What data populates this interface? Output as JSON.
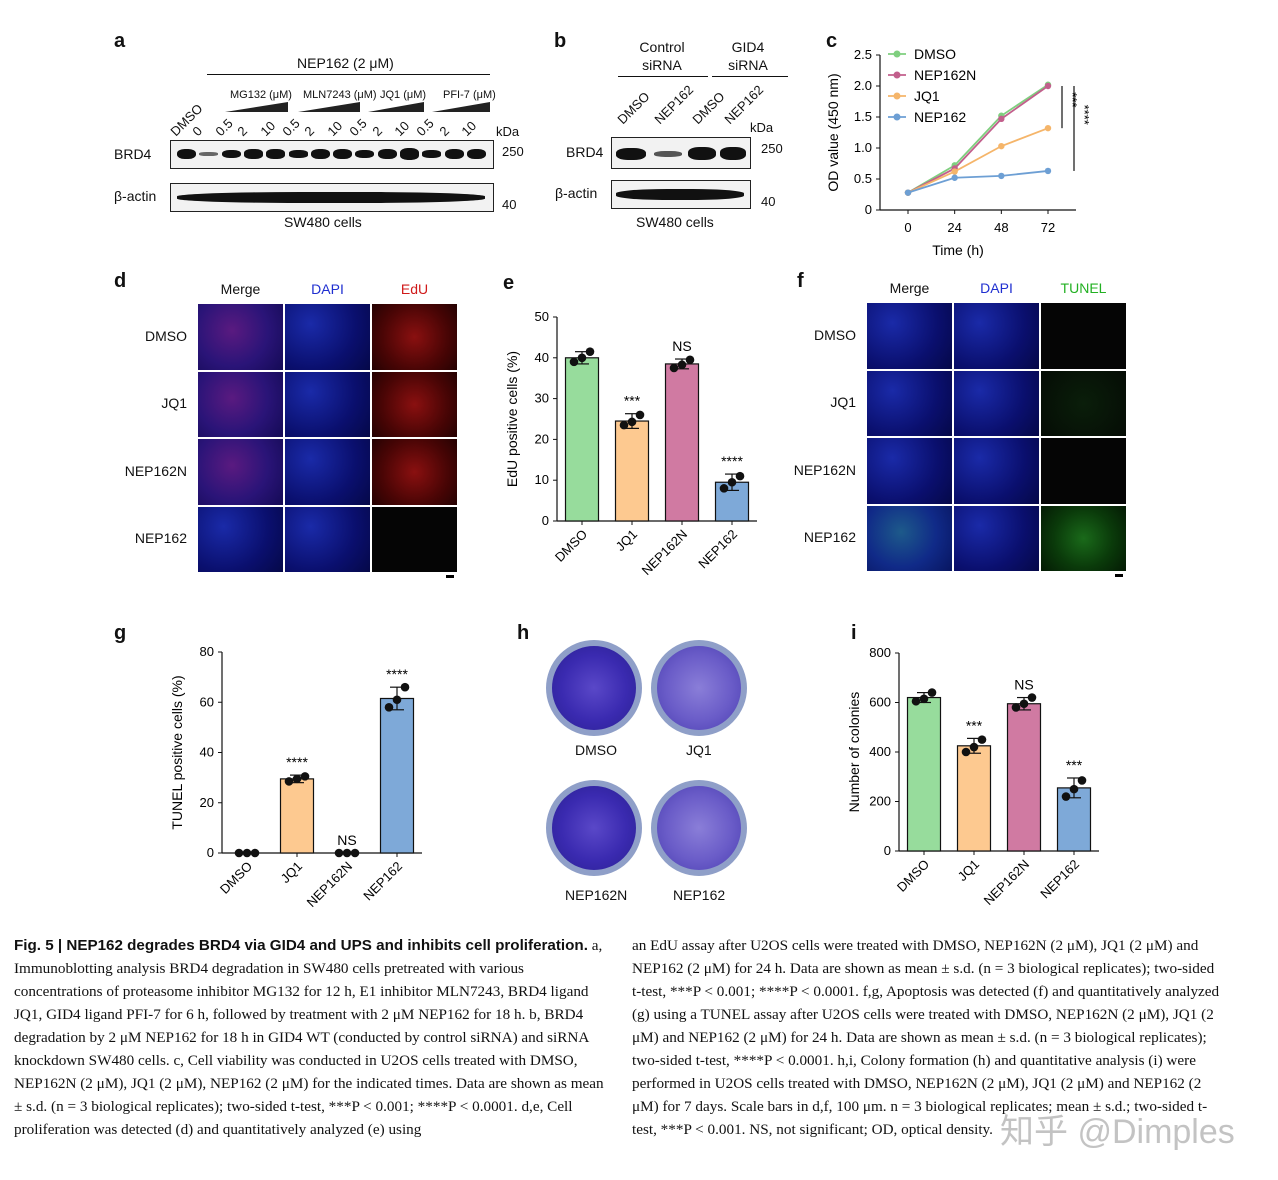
{
  "panels": {
    "a": {
      "letter": "a",
      "treatment": "NEP162 (2 μM)",
      "inhibitors": [
        "MG132 (μM)",
        "MLN7243 (μM)",
        "JQ1 (μM)",
        "PFI-7 (μM)"
      ],
      "lanes": [
        "DMSO",
        "0",
        "0.5",
        "2",
        "10",
        "0.5",
        "2",
        "10",
        "0.5",
        "2",
        "10",
        "0.5",
        "2",
        "10"
      ],
      "kda": "kDa",
      "rows": [
        "BRD4",
        "β-actin"
      ],
      "markers": [
        "250",
        "40"
      ],
      "cells": "SW480 cells"
    },
    "b": {
      "letter": "b",
      "groups": [
        "Control siRNA",
        "GID4 siRNA"
      ],
      "lanes": [
        "DMSO",
        "NEP162",
        "DMSO",
        "NEP162"
      ],
      "kda": "kDa",
      "rows": [
        "BRD4",
        "β-actin"
      ],
      "markers": [
        "250",
        "40"
      ],
      "cells": "SW480 cells"
    },
    "d": {
      "letter": "d",
      "columns": [
        "Merge",
        "DAPI",
        "EdU"
      ],
      "rows": [
        "DMSO",
        "JQ1",
        "NEP162N",
        "NEP162"
      ],
      "column_colors": [
        "#111111",
        "#1f2fd0",
        "#d01a1a"
      ]
    },
    "f": {
      "letter": "f",
      "columns": [
        "Merge",
        "DAPI",
        "TUNEL"
      ],
      "rows": [
        "DMSO",
        "JQ1",
        "NEP162N",
        "NEP162"
      ],
      "column_colors": [
        "#111111",
        "#1f2fd0",
        "#22b022"
      ]
    },
    "h": {
      "letter": "h",
      "labels": [
        "DMSO",
        "JQ1",
        "NEP162N",
        "NEP162"
      ]
    }
  },
  "chart_data": [
    {
      "panel": "c",
      "type": "line",
      "x": [
        0,
        24,
        48,
        72
      ],
      "xlabel": "Time (h)",
      "ylabel": "OD value (450 nm)",
      "ylim": [
        0,
        2.5
      ],
      "yticks": [
        "0",
        "0.5",
        "1.0",
        "1.5",
        "2.0",
        "2.5"
      ],
      "xticks": [
        "0",
        "24",
        "48",
        "72"
      ],
      "legend_position": "top-left",
      "series": [
        {
          "name": "DMSO",
          "values": [
            0.28,
            0.72,
            1.52,
            2.02
          ],
          "color": "#7fcf7f"
        },
        {
          "name": "NEP162N",
          "values": [
            0.28,
            0.67,
            1.47,
            2.0
          ],
          "color": "#c25f8c"
        },
        {
          "name": "JQ1",
          "values": [
            0.28,
            0.62,
            1.03,
            1.32
          ],
          "color": "#f5b56a"
        },
        {
          "name": "NEP162",
          "values": [
            0.28,
            0.52,
            0.55,
            0.63
          ],
          "color": "#6d9fd4"
        }
      ],
      "annotations": [
        "***",
        "****"
      ]
    },
    {
      "panel": "e",
      "type": "bar",
      "categories": [
        "DMSO",
        "JQ1",
        "NEP162N",
        "NEP162"
      ],
      "values": [
        40,
        24.5,
        38.5,
        9.5
      ],
      "errors": [
        1.5,
        1.8,
        1.2,
        2.0
      ],
      "points": [
        [
          39,
          40,
          41.5
        ],
        [
          23.5,
          24.3,
          26
        ],
        [
          37.5,
          38.3,
          39.5
        ],
        [
          8,
          9.5,
          11
        ]
      ],
      "significance": [
        "",
        "***",
        "NS",
        "****"
      ],
      "colors": [
        "#97dc9c",
        "#fdc990",
        "#d07aa2",
        "#7ea9d8"
      ],
      "ylabel": "EdU positive cells (%)",
      "ylim": [
        0,
        50
      ],
      "yticks": [
        "0",
        "10",
        "20",
        "30",
        "40",
        "50"
      ]
    },
    {
      "panel": "g",
      "type": "bar",
      "categories": [
        "DMSO",
        "JQ1",
        "NEP162N",
        "NEP162"
      ],
      "values": [
        0,
        29.5,
        0,
        61.5
      ],
      "errors": [
        0,
        1.5,
        0,
        4.5
      ],
      "points": [
        [
          0,
          0,
          0
        ],
        [
          28.5,
          29.5,
          30.5
        ],
        [
          0,
          0,
          0
        ],
        [
          58,
          61,
          66
        ]
      ],
      "significance": [
        "",
        "****",
        "NS",
        "****"
      ],
      "colors": [
        "#97dc9c",
        "#fdc990",
        "#d07aa2",
        "#7ea9d8"
      ],
      "ylabel": "TUNEL positive cells (%)",
      "ylim": [
        0,
        80
      ],
      "yticks": [
        "0",
        "20",
        "40",
        "60",
        "80"
      ]
    },
    {
      "panel": "i",
      "type": "bar",
      "categories": [
        "DMSO",
        "JQ1",
        "NEP162N",
        "NEP162"
      ],
      "values": [
        620,
        425,
        595,
        255
      ],
      "errors": [
        20,
        30,
        25,
        40
      ],
      "points": [
        [
          605,
          615,
          640
        ],
        [
          400,
          420,
          450
        ],
        [
          580,
          595,
          620
        ],
        [
          220,
          250,
          285
        ]
      ],
      "significance": [
        "",
        "***",
        "NS",
        "***"
      ],
      "colors": [
        "#97dc9c",
        "#fdc990",
        "#d07aa2",
        "#7ea9d8"
      ],
      "ylabel": "Number of colonies",
      "ylim": [
        0,
        800
      ],
      "yticks": [
        "0",
        "200",
        "400",
        "600",
        "800"
      ]
    }
  ],
  "caption": {
    "title": "Fig. 5 | NEP162 degrades BRD4 via GID4 and UPS and inhibits cell proliferation.",
    "left": "a, Immunoblotting analysis BRD4 degradation in SW480 cells pretreated with various concentrations of proteasome inhibitor MG132 for 12 h, E1 inhibitor MLN7243, BRD4 ligand JQ1, GID4 ligand PFI-7 for 6 h, followed by treatment with 2 μM NEP162 for 18 h. b, BRD4 degradation by 2 μM NEP162 for 18 h in GID4 WT (conducted by control siRNA) and siRNA knockdown SW480 cells. c, Cell viability was conducted in U2OS cells treated with DMSO, NEP162N (2 μM), JQ1 (2 μM), NEP162 (2 μM) for the indicated times. Data are shown as mean ± s.d. (n = 3 biological replicates); two-sided t-test, ***P < 0.001; ****P < 0.0001. d,e, Cell proliferation was detected (d) and quantitatively analyzed (e) using",
    "right": "an EdU assay after U2OS cells were treated with DMSO, NEP162N (2 μM), JQ1 (2 μM) and NEP162 (2 μM) for 24 h. Data are shown as mean ± s.d. (n = 3 biological replicates); two-sided t-test, ***P < 0.001; ****P < 0.0001. f,g, Apoptosis was detected (f) and quantitatively analyzed (g) using a TUNEL assay after U2OS cells were treated with DMSO, NEP162N (2 μM), JQ1 (2 μM) and NEP162 (2 μM) for 24 h. Data are shown as mean ± s.d. (n = 3 biological replicates); two-sided t-test, ****P < 0.0001. h,i, Colony formation (h) and quantitative analysis (i) were performed in U2OS cells treated with DMSO, NEP162N (2 μM), JQ1 (2 μM) and NEP162 (2 μM) for 7 days. Scale bars in d,f, 100 μm. n = 3 biological replicates; mean ± s.d.; two-sided t-test, ***P < 0.001. NS, not significant; OD, optical density."
  },
  "watermark": "知乎 @Dimples"
}
